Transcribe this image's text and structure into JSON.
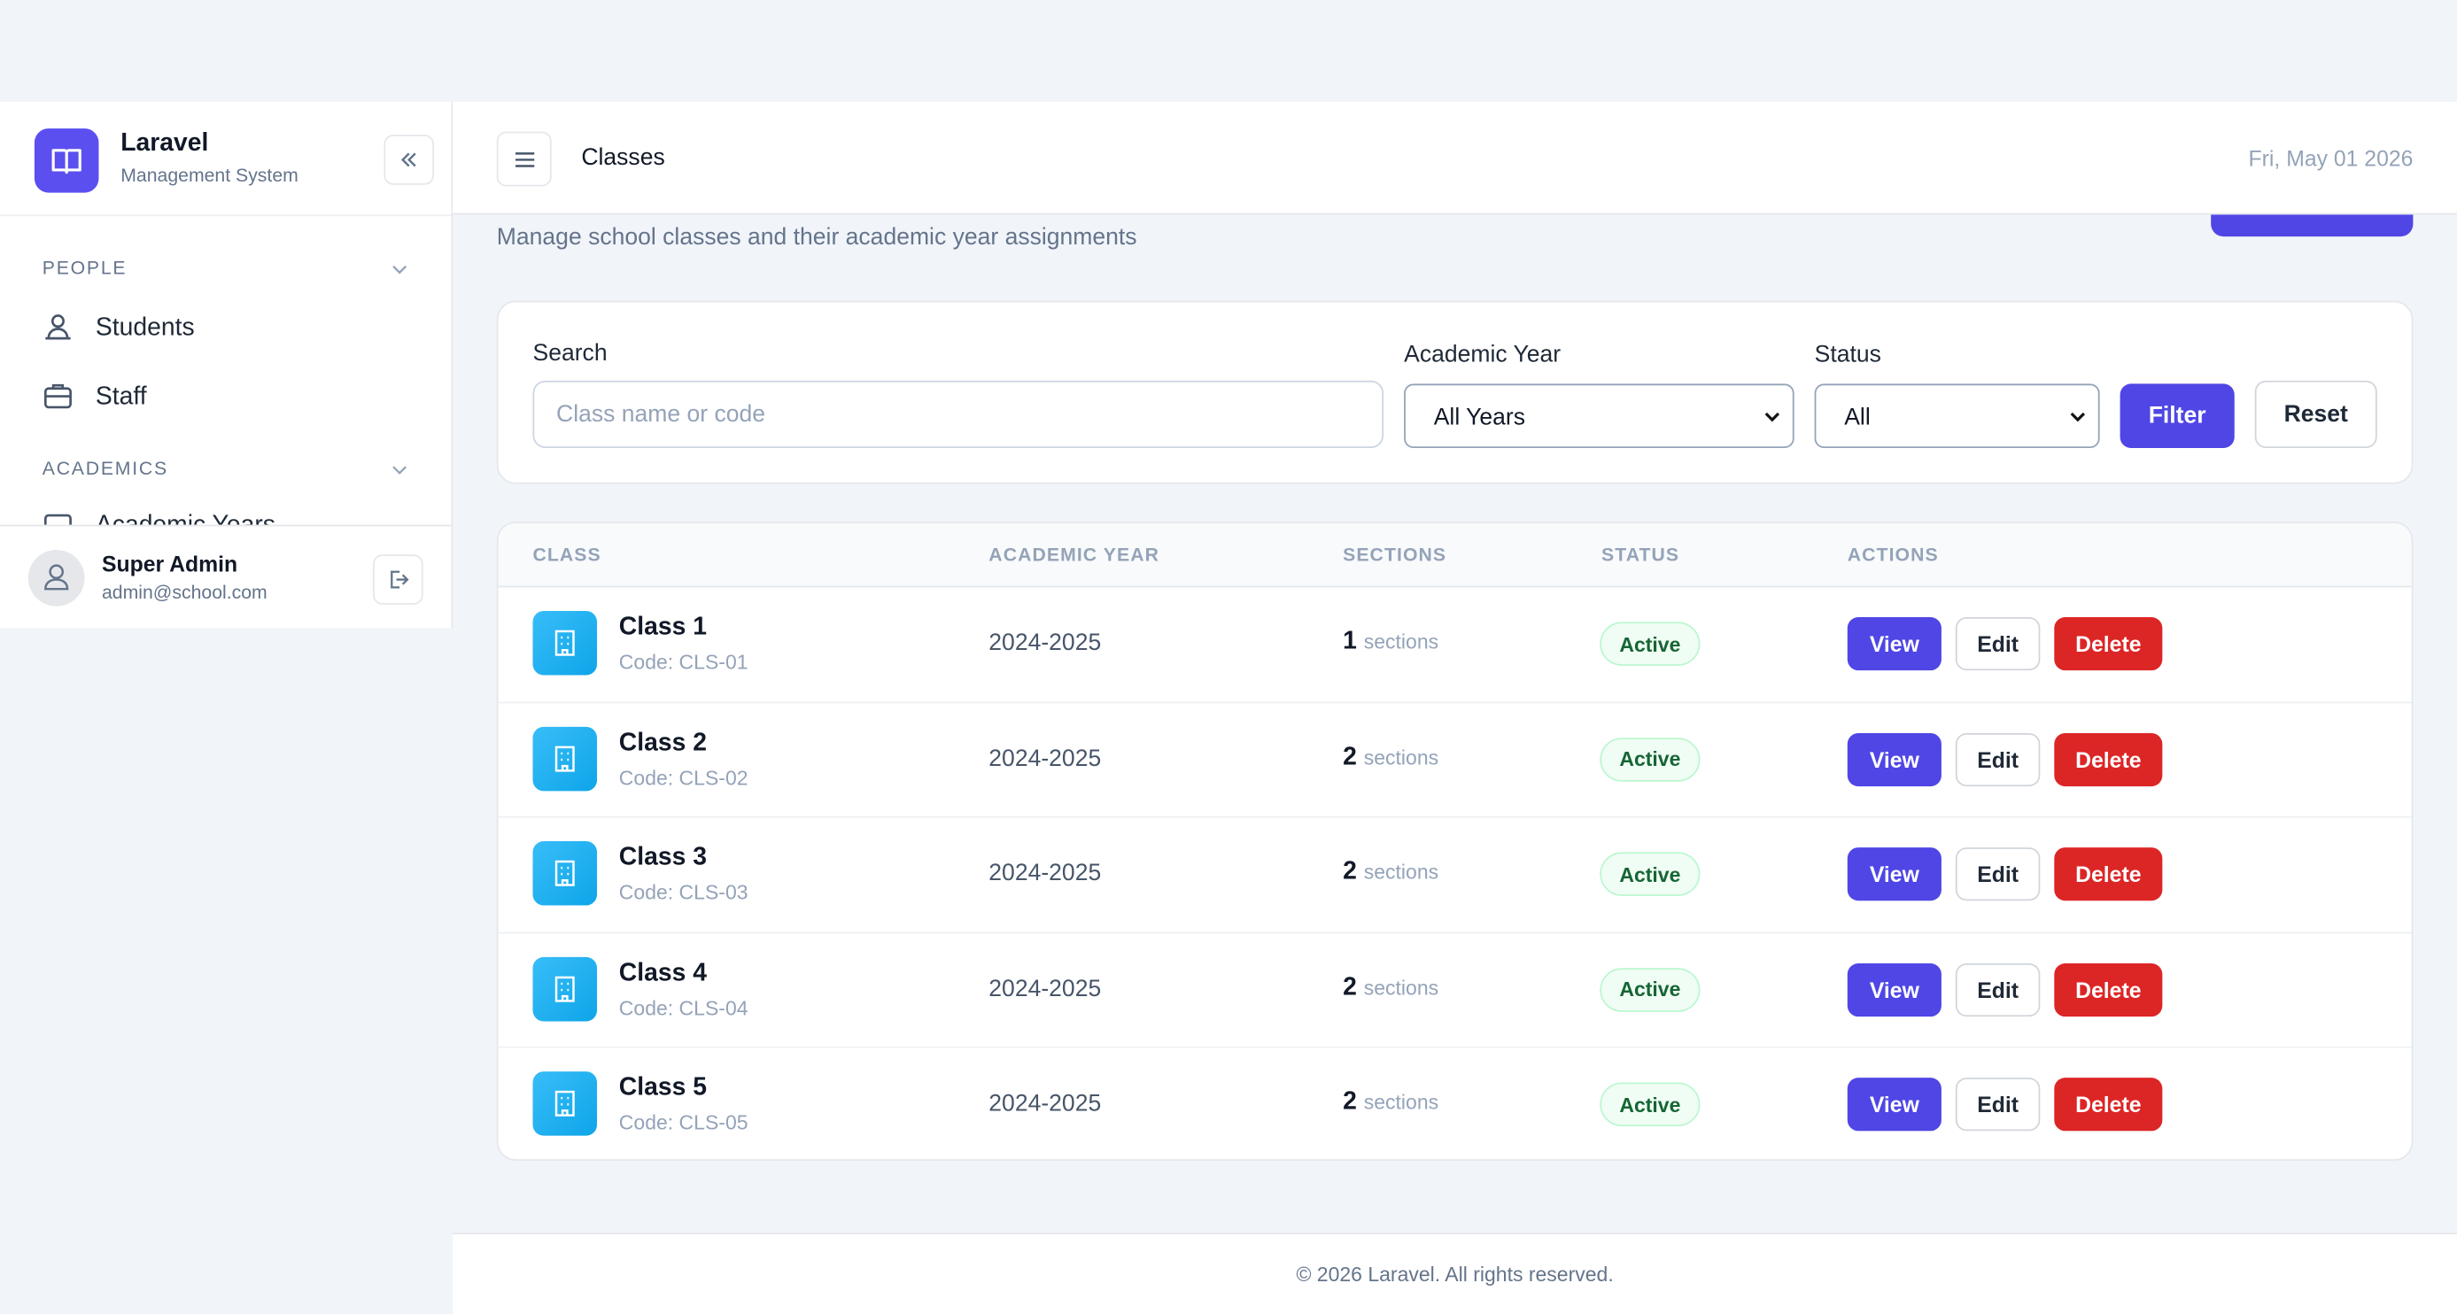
{
  "sidebar": {
    "brand": {
      "title": "Laravel",
      "subtitle": "Management System"
    },
    "sections": [
      {
        "title": "PEOPLE",
        "items": [
          "Students",
          "Staff"
        ]
      },
      {
        "title": "ACADEMICS",
        "items": [
          "Academic Years"
        ]
      }
    ],
    "user": {
      "name": "Super Admin",
      "email": "admin@school.com"
    }
  },
  "header": {
    "title": "Classes",
    "date": "Fri, May 01 2026"
  },
  "subtitle": "Manage school classes and their academic year assignments",
  "filters": {
    "search_label": "Search",
    "search_placeholder": "Class name or code",
    "year_label": "Academic Year",
    "year_value": "All Years",
    "status_label": "Status",
    "status_value": "All",
    "filter_button": "Filter",
    "reset_button": "Reset"
  },
  "table": {
    "columns": [
      "CLASS",
      "ACADEMIC YEAR",
      "SECTIONS",
      "STATUS",
      "ACTIONS"
    ],
    "actions": [
      "View",
      "Edit",
      "Delete"
    ],
    "rows": [
      {
        "name": "Class 1",
        "code": "Code: CLS-01",
        "year": "2024-2025",
        "sections": "1",
        "sections_unit": "sections",
        "status": "Active"
      },
      {
        "name": "Class 2",
        "code": "Code: CLS-02",
        "year": "2024-2025",
        "sections": "2",
        "sections_unit": "sections",
        "status": "Active"
      },
      {
        "name": "Class 3",
        "code": "Code: CLS-03",
        "year": "2024-2025",
        "sections": "2",
        "sections_unit": "sections",
        "status": "Active"
      },
      {
        "name": "Class 4",
        "code": "Code: CLS-04",
        "year": "2024-2025",
        "sections": "2",
        "sections_unit": "sections",
        "status": "Active"
      },
      {
        "name": "Class 5",
        "code": "Code: CLS-05",
        "year": "2024-2025",
        "sections": "2",
        "sections_unit": "sections",
        "status": "Active"
      }
    ]
  },
  "footer": "© 2026 Laravel. All rights reserved."
}
